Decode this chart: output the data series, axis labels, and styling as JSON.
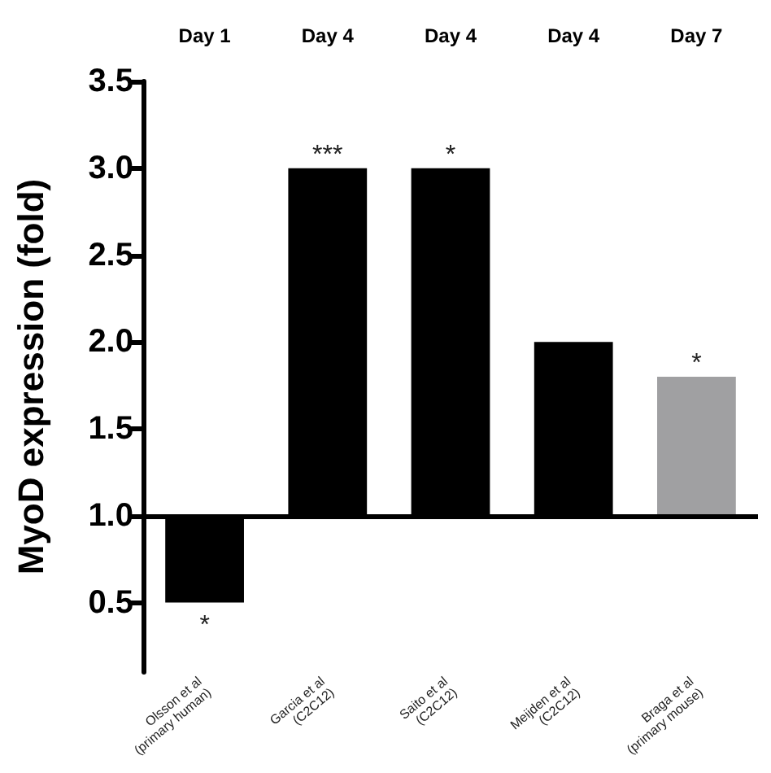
{
  "chart_data": {
    "type": "bar",
    "ylabel": "MyoD expression (fold)",
    "categories": [
      "Olsson et al\n(primary human)",
      "Garcia et al\n(C2C12)",
      "Saito et al\n(C2C12)",
      "Meijden et al\n(C2C12)",
      "Braga et al\n(primary mouse)"
    ],
    "base": [
      1.0,
      1.0,
      1.0,
      1.0,
      1.0
    ],
    "values": [
      -0.5,
      2.0,
      2.0,
      1.0,
      0.8
    ],
    "colors": [
      "#000000",
      "#000000",
      "#000000",
      "#000000",
      "#a0a0a2"
    ],
    "ylim": [
      0.1,
      3.5
    ],
    "yticks": [
      {
        "value": 0.5,
        "label": "0.5"
      },
      {
        "value": 1.0,
        "label": "1.0"
      },
      {
        "value": 1.5,
        "label": "1.5"
      },
      {
        "value": 2.0,
        "label": "2.0"
      },
      {
        "value": 2.5,
        "label": "2.5"
      },
      {
        "value": 3.0,
        "label": "3.0"
      },
      {
        "value": 3.5,
        "label": "3.5"
      }
    ],
    "ref_lines": [
      {
        "axis": "y",
        "value": 1.0,
        "color": "#000000"
      }
    ],
    "annotations": [
      "Day 1",
      "Day 4",
      "Day 4",
      "Day 4",
      "Day 7",
      {
        "text": "*",
        "x": "Olsson et al\n(primary human)",
        "y": 0.5
      },
      {
        "text": "***",
        "x": "Garcia et al\n(C2C12)",
        "y": 3.0
      },
      {
        "text": "*",
        "x": "Saito et al\n(C2C12)",
        "y": 3.0
      },
      {
        "text": "*",
        "x": "Braga et al\n(primary mouse)",
        "y": 1.8
      }
    ]
  }
}
